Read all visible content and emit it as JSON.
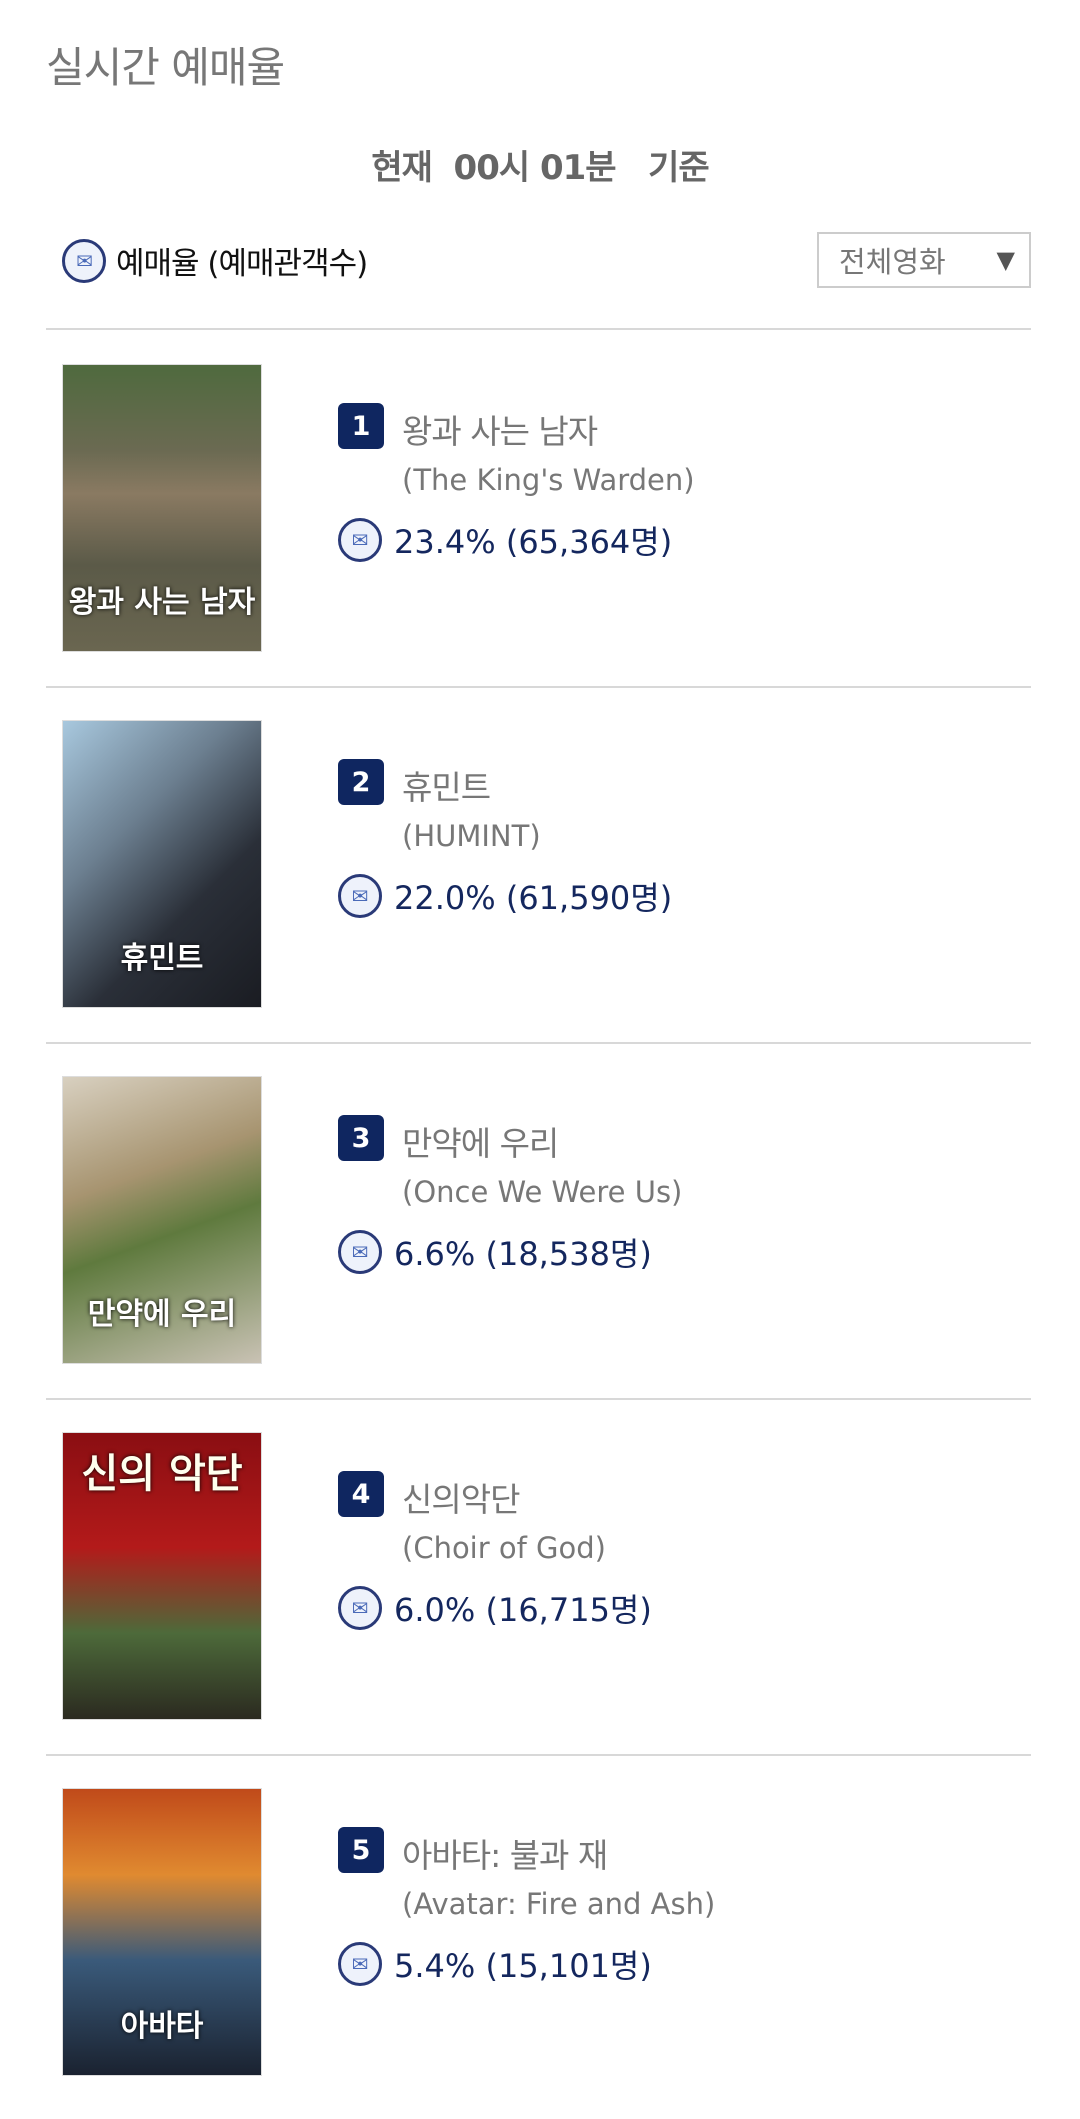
{
  "page_title": "실시간 예매율",
  "basis_text": "현재  00시 01분   기준",
  "legend_label": "예매율 (예매관객수)",
  "filter": {
    "selected": "전체영화",
    "icon": "triangle-down-icon"
  },
  "colors": {
    "badge": "#0f2660",
    "stat_text": "#14275e"
  },
  "movies": [
    {
      "rank": "1",
      "title": "왕과 사는 남자",
      "subtitle": "(The King's Warden)",
      "stat": "23.4% (65,364명)",
      "poster_text": "왕과 사는 남자"
    },
    {
      "rank": "2",
      "title": "휴민트",
      "subtitle": "(HUMINT)",
      "stat": "22.0% (61,590명)",
      "poster_text": "휴민트"
    },
    {
      "rank": "3",
      "title": "만약에 우리",
      "subtitle": "(Once We Were Us)",
      "stat": "6.6% (18,538명)",
      "poster_text": "만약에 우리"
    },
    {
      "rank": "4",
      "title": "신의악단",
      "subtitle": "(Choir of God)",
      "stat": "6.0% (16,715명)",
      "poster_text": "신의 악단"
    },
    {
      "rank": "5",
      "title": "아바타: 불과 재",
      "subtitle": "(Avatar: Fire and Ash)",
      "stat": "5.4% (15,101명)",
      "poster_text": "아바타"
    }
  ]
}
